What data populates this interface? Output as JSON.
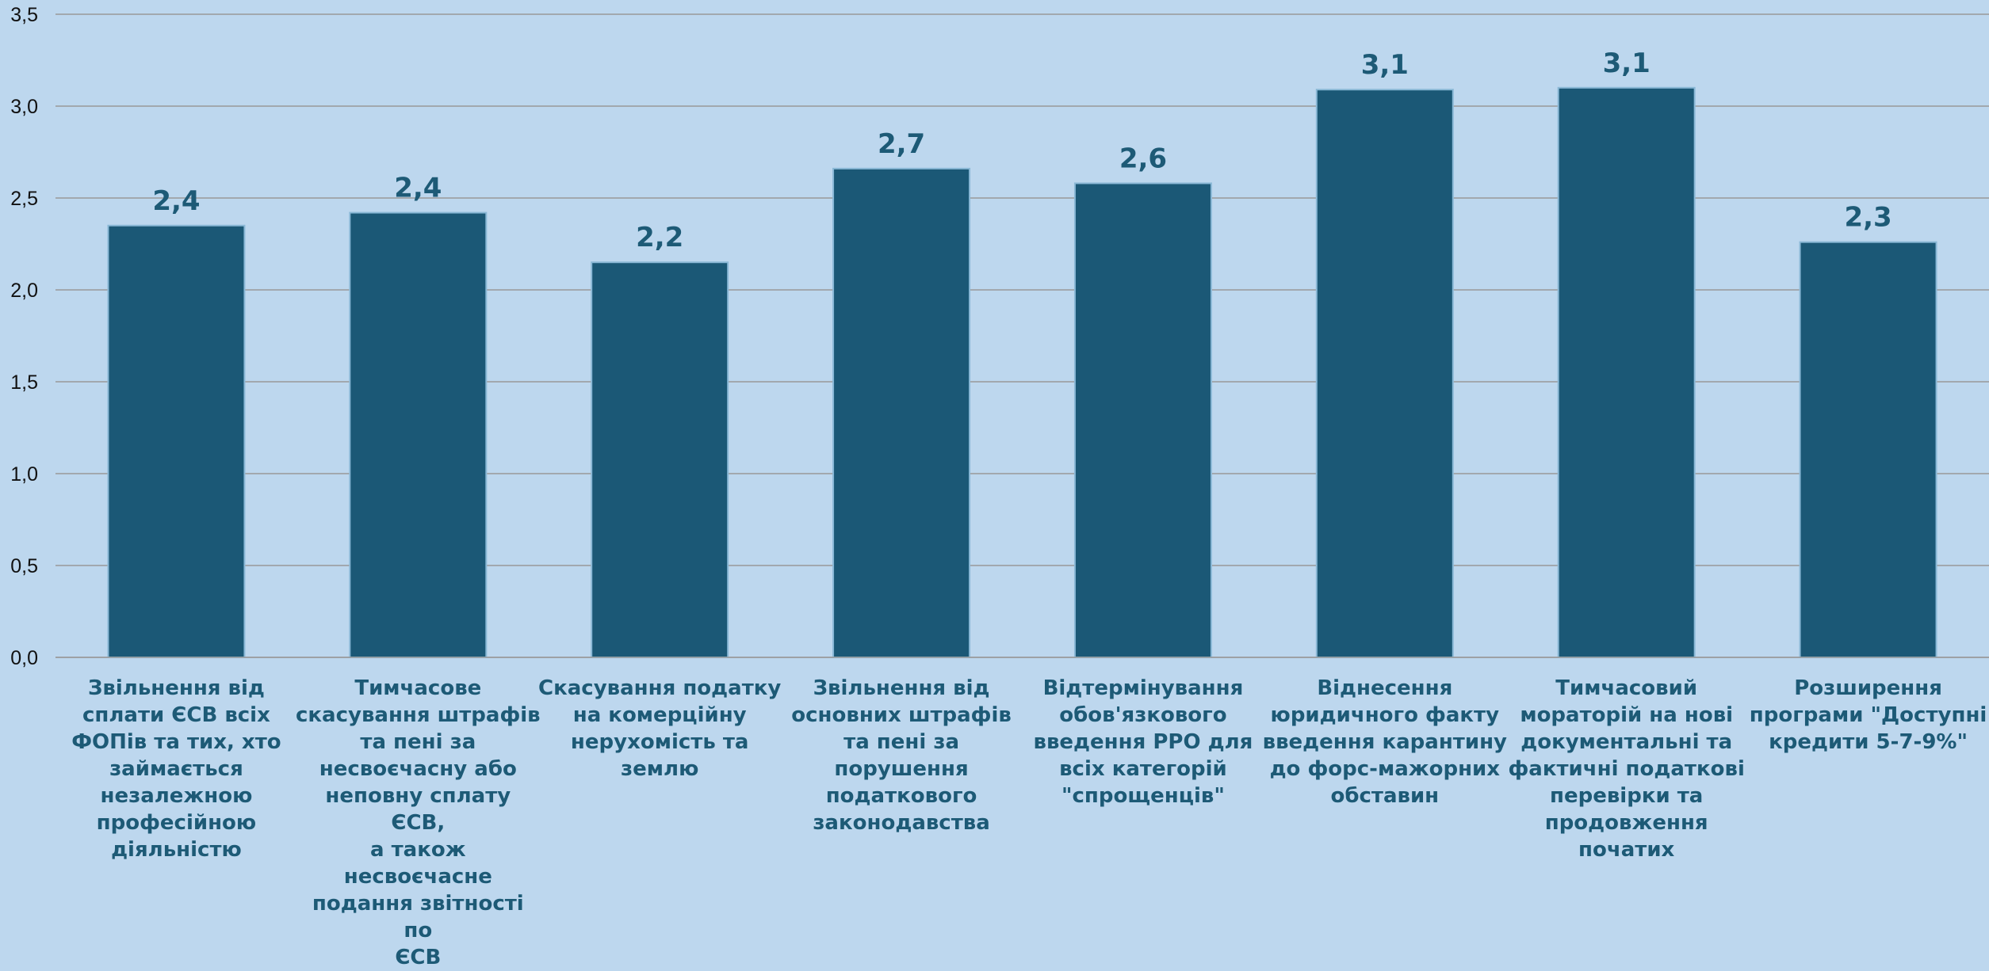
{
  "chart_data": {
    "type": "bar",
    "categories": [
      "Звільнення від сплати ЄСВ всіх ФОПів та тих, хто займається незалежною професійною діяльністю",
      "Тимчасове скасування штрафів та пені за несвоєчасну або неповну сплату ЄСВ, а також несвоєчасне подання звітності по ЄСВ",
      "Скасування податку на комерційну нерухомість та землю",
      "Звільнення від основних штрафів та пені за порушення податкового законодавства",
      "Відтермінування обов'язкового введення РРО для всіх категорій \"спрощенців\"",
      "Віднесення юридичного факту введення карантину до форс-мажорних обставин",
      "Тимчасовий мораторій на нові документальні та фактичні податкові перевірки та продовження початих",
      "Розширення програми \"Доступні кредити 5-7-9%\""
    ],
    "category_lines": [
      [
        "Звільнення від",
        "сплати ЄСВ всіх",
        "ФОПів та тих, хто",
        "займається",
        "незалежною",
        "професійною",
        "діяльністю"
      ],
      [
        "Тимчасове",
        "скасування штрафів",
        "та пені за",
        "несвоєчасну або",
        "неповну сплату ЄСВ,",
        "а також",
        "несвоєчасне",
        "подання звітності по",
        "ЄСВ"
      ],
      [
        "Скасування податку",
        "на комерційну",
        "нерухомість та",
        "землю"
      ],
      [
        "Звільнення від",
        "основних штрафів",
        "та пені за",
        "порушення",
        "податкового",
        "законодавства"
      ],
      [
        "Відтермінування",
        "обов'язкового",
        "введення РРО для",
        "всіх категорій",
        "\"спрощенців\""
      ],
      [
        "Віднесення",
        "юридичного факту",
        "введення карантину",
        "до форс-мажорних",
        "обставин"
      ],
      [
        "Тимчасовий",
        "мораторій на нові",
        "документальні та",
        "фактичні податкові",
        "перевірки та",
        "продовження",
        "початих"
      ],
      [
        "Розширення",
        "програми \"Доступні",
        "кредити 5-7-9%\""
      ]
    ],
    "values": [
      2.35,
      2.42,
      2.15,
      2.66,
      2.58,
      3.09,
      3.1,
      2.26
    ],
    "data_labels": [
      "2,4",
      "2,4",
      "2,2",
      "2,7",
      "2,6",
      "3,1",
      "3,1",
      "2,3"
    ],
    "ylim": [
      0,
      3.5
    ],
    "yticks": [
      0,
      0.5,
      1,
      1.5,
      2,
      2.5,
      3,
      3.5
    ],
    "ytick_labels": [
      "0,0",
      "0,5",
      "1,0",
      "1,5",
      "2,0",
      "2,5",
      "3,0",
      "3,5"
    ],
    "grid": true,
    "title": "",
    "xlabel": "",
    "ylabel": "",
    "colors": {
      "background": "#bdd7ee",
      "bar": "#1b5876",
      "bar_outline": "#8ab8d6",
      "gridline": "#999999",
      "data_label": "#1d5a76",
      "category_label": "#1d5a76",
      "tick_label": "#111111"
    }
  }
}
